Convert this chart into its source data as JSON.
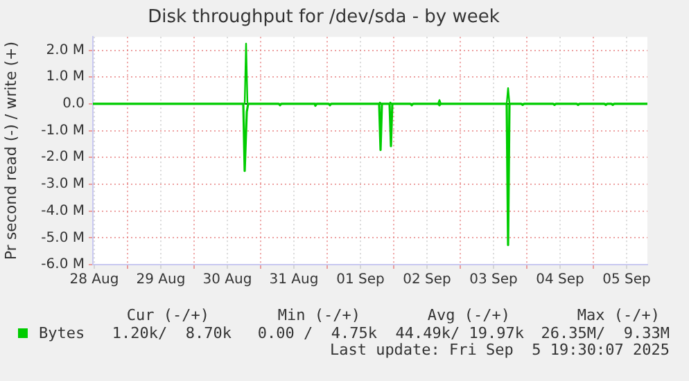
{
  "chart_data": {
    "type": "line",
    "title": "Disk throughput for /dev/sda - by week",
    "ylabel": "Pr second read (-) / write (+)",
    "xlim": [
      "2025-08-28T11:30",
      "2025-09-05T19:30"
    ],
    "xticks": [
      {
        "value": "2025-08-28T12:00",
        "label": "28 Aug"
      },
      {
        "value": "2025-08-29T00:00",
        "label": null
      },
      {
        "value": "2025-08-29T12:00",
        "label": "29 Aug"
      },
      {
        "value": "2025-08-30T00:00",
        "label": null
      },
      {
        "value": "2025-08-30T12:00",
        "label": "30 Aug"
      },
      {
        "value": "2025-08-31T00:00",
        "label": null
      },
      {
        "value": "2025-08-31T12:00",
        "label": "31 Aug"
      },
      {
        "value": "2025-09-01T00:00",
        "label": null
      },
      {
        "value": "2025-09-01T12:00",
        "label": "01 Sep"
      },
      {
        "value": "2025-09-02T00:00",
        "label": null
      },
      {
        "value": "2025-09-02T12:00",
        "label": "02 Sep"
      },
      {
        "value": "2025-09-03T00:00",
        "label": null
      },
      {
        "value": "2025-09-03T12:00",
        "label": "03 Sep"
      },
      {
        "value": "2025-09-04T00:00",
        "label": null
      },
      {
        "value": "2025-09-04T12:00",
        "label": "04 Sep"
      },
      {
        "value": "2025-09-05T00:00",
        "label": null
      },
      {
        "value": "2025-09-05T12:00",
        "label": "05 Sep"
      }
    ],
    "ylim": [
      -6,
      2.5
    ],
    "yticks": [
      {
        "value": 2,
        "label": "2.0 M"
      },
      {
        "value": 1,
        "label": "1.0 M"
      },
      {
        "value": 0,
        "label": "0.0"
      },
      {
        "value": -1,
        "label": "-1.0 M"
      },
      {
        "value": -2,
        "label": "-2.0 M"
      },
      {
        "value": -3,
        "label": "-3.0 M"
      },
      {
        "value": -4,
        "label": "-4.0 M"
      },
      {
        "value": -5,
        "label": "-5.0 M"
      },
      {
        "value": -6,
        "label": "-6.0 M"
      }
    ],
    "grid": true,
    "legend": "bottom left",
    "marker": "none",
    "line_style": "solid",
    "ref_lines": [
      {
        "axis": "y",
        "value": 0,
        "color": "#000000"
      }
    ],
    "series": [
      {
        "name": "Bytes",
        "color": "#00cc00",
        "x": [
          "2025-08-28T11:30",
          "2025-08-30T18:15",
          "2025-08-30T18:45",
          "2025-08-30T19:15",
          "2025-09-01T18:45",
          "2025-09-01T19:00",
          "2025-09-01T19:30",
          "2025-09-01T22:30",
          "2025-09-01T22:45",
          "2025-09-01T23:15",
          "2025-09-02T16:00",
          "2025-09-02T16:30",
          "2025-09-02T17:00",
          "2025-09-03T16:45",
          "2025-09-03T17:15",
          "2025-09-03T17:45",
          "2025-09-05T19:30"
        ],
        "values": [
          0,
          0,
          2.25,
          0,
          0,
          0.05,
          0,
          0,
          0.05,
          0,
          0,
          0.14,
          0,
          0,
          0.59,
          0,
          0
        ]
      },
      {
        "color": "#00cc00",
        "x": [
          "2025-08-28T11:30",
          "2025-08-30T17:45",
          "2025-08-30T18:15",
          "2025-08-30T19:00",
          "2025-08-30T19:30",
          "2025-08-31T06:30",
          "2025-08-31T07:00",
          "2025-08-31T07:30",
          "2025-08-31T19:30",
          "2025-08-31T19:45",
          "2025-08-31T20:15",
          "2025-09-01T00:30",
          "2025-09-01T01:00",
          "2025-09-01T01:30",
          "2025-09-01T18:45",
          "2025-09-01T19:15",
          "2025-09-01T19:45",
          "2025-09-01T22:30",
          "2025-09-01T23:00",
          "2025-09-01T23:30",
          "2025-09-02T06:00",
          "2025-09-02T06:30",
          "2025-09-02T07:00",
          "2025-09-02T16:00",
          "2025-09-02T16:30",
          "2025-09-02T17:00",
          "2025-09-03T16:45",
          "2025-09-03T17:15",
          "2025-09-03T17:45",
          "2025-09-03T22:00",
          "2025-09-03T22:30",
          "2025-09-03T23:00",
          "2025-09-04T09:30",
          "2025-09-04T10:00",
          "2025-09-04T10:30",
          "2025-09-04T18:00",
          "2025-09-04T18:30",
          "2025-09-04T19:00",
          "2025-09-05T04:00",
          "2025-09-05T04:30",
          "2025-09-05T05:00",
          "2025-09-05T06:30",
          "2025-09-05T07:00",
          "2025-09-05T07:30",
          "2025-09-05T19:30"
        ],
        "values": [
          0,
          0,
          -2.5,
          -0.3,
          0,
          0,
          -0.05,
          0,
          0,
          -0.07,
          0,
          0,
          -0.05,
          0,
          0,
          -1.72,
          0,
          0,
          -1.58,
          0,
          0,
          -0.05,
          0,
          0,
          -0.05,
          0,
          0,
          -5.27,
          0,
          0,
          -0.04,
          0,
          0,
          -0.04,
          0,
          0,
          -0.04,
          0,
          0,
          -0.04,
          0,
          0,
          -0.04,
          0,
          0
        ]
      }
    ],
    "annotations": [
      "Cur (-/+)",
      "Min (-/+)",
      "Avg (-/+)",
      "Max (-/+)",
      "1.20k/  8.70k",
      "0.00 /  4.75k",
      "44.49k/ 19.97k",
      "26.35M/  9.33M",
      "Last update: Fri Sep  5 19:30:07 2025"
    ]
  }
}
